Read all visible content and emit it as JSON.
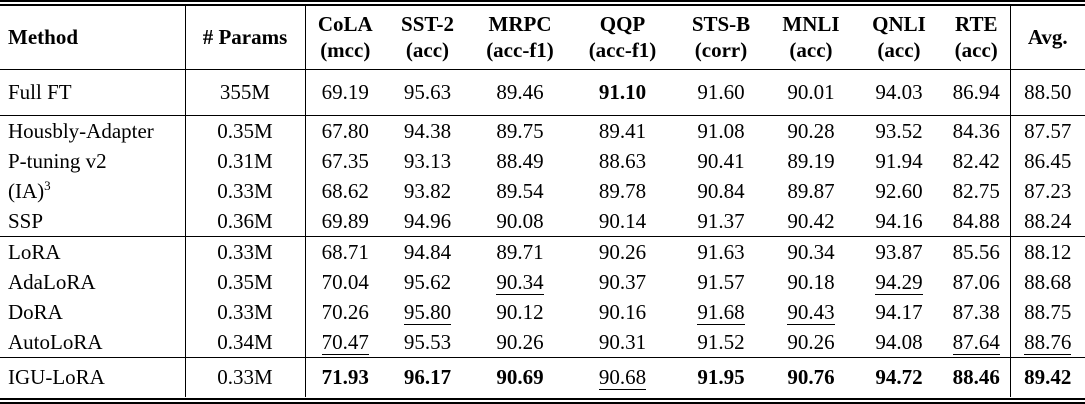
{
  "page": {
    "background_color": "#ffffff",
    "text_color": "#000000",
    "rule_color": "#000000"
  },
  "table": {
    "columns": [
      {
        "id": "method",
        "label": "Method",
        "sub": ""
      },
      {
        "id": "params",
        "label": "# Params",
        "sub": ""
      },
      {
        "id": "cola",
        "label": "CoLA",
        "sub": "(mcc)"
      },
      {
        "id": "sst2",
        "label": "SST-2",
        "sub": "(acc)"
      },
      {
        "id": "mrpc",
        "label": "MRPC",
        "sub": "(acc-f1)"
      },
      {
        "id": "qqp",
        "label": "QQP",
        "sub": "(acc-f1)"
      },
      {
        "id": "stsb",
        "label": "STS-B",
        "sub": "(corr)"
      },
      {
        "id": "mnli",
        "label": "MNLI",
        "sub": "(acc)"
      },
      {
        "id": "qnli",
        "label": "QNLI",
        "sub": "(acc)"
      },
      {
        "id": "rte",
        "label": "RTE",
        "sub": "(acc)"
      },
      {
        "id": "avg",
        "label": "Avg.",
        "sub": ""
      }
    ],
    "style_legend": {
      "bold": "best score",
      "underline": "second-best score"
    },
    "groups": [
      {
        "rows": [
          {
            "method": "Full FT",
            "params": "355M",
            "values": [
              "69.19",
              "95.63",
              "89.46",
              "91.10",
              "91.60",
              "90.01",
              "94.03",
              "86.94",
              "88.50"
            ],
            "styles": [
              "plain",
              "plain",
              "plain",
              "bold",
              "plain",
              "plain",
              "plain",
              "plain",
              "plain"
            ]
          }
        ]
      },
      {
        "rows": [
          {
            "method": "Housbly-Adapter",
            "params": "0.35M",
            "values": [
              "67.80",
              "94.38",
              "89.75",
              "89.41",
              "91.08",
              "90.28",
              "93.52",
              "84.36",
              "87.57"
            ],
            "styles": [
              "plain",
              "plain",
              "plain",
              "plain",
              "plain",
              "plain",
              "plain",
              "plain",
              "plain"
            ]
          },
          {
            "method": "P-tuning v2",
            "params": "0.31M",
            "values": [
              "67.35",
              "93.13",
              "88.49",
              "88.63",
              "90.41",
              "89.19",
              "91.94",
              "82.42",
              "86.45"
            ],
            "styles": [
              "plain",
              "plain",
              "plain",
              "plain",
              "plain",
              "plain",
              "plain",
              "plain",
              "plain"
            ]
          },
          {
            "method": "(IA)",
            "method_sup": "3",
            "params": "0.33M",
            "values": [
              "68.62",
              "93.82",
              "89.54",
              "89.78",
              "90.84",
              "89.87",
              "92.60",
              "82.75",
              "87.23"
            ],
            "styles": [
              "plain",
              "plain",
              "plain",
              "plain",
              "plain",
              "plain",
              "plain",
              "plain",
              "plain"
            ]
          },
          {
            "method": "SSP",
            "params": "0.36M",
            "values": [
              "69.89",
              "94.96",
              "90.08",
              "90.14",
              "91.37",
              "90.42",
              "94.16",
              "84.88",
              "88.24"
            ],
            "styles": [
              "plain",
              "plain",
              "plain",
              "plain",
              "plain",
              "plain",
              "plain",
              "plain",
              "plain"
            ]
          }
        ]
      },
      {
        "rows": [
          {
            "method": "LoRA",
            "params": "0.33M",
            "values": [
              "68.71",
              "94.84",
              "89.71",
              "90.26",
              "91.63",
              "90.34",
              "93.87",
              "85.56",
              "88.12"
            ],
            "styles": [
              "plain",
              "plain",
              "plain",
              "plain",
              "plain",
              "plain",
              "plain",
              "plain",
              "plain"
            ]
          },
          {
            "method": "AdaLoRA",
            "params": "0.35M",
            "values": [
              "70.04",
              "95.62",
              "90.34",
              "90.37",
              "91.57",
              "90.18",
              "94.29",
              "87.06",
              "88.68"
            ],
            "styles": [
              "plain",
              "plain",
              "underline",
              "plain",
              "plain",
              "plain",
              "underline",
              "plain",
              "plain"
            ]
          },
          {
            "method": "DoRA",
            "params": "0.33M",
            "values": [
              "70.26",
              "95.80",
              "90.12",
              "90.16",
              "91.68",
              "90.43",
              "94.17",
              "87.38",
              "88.75"
            ],
            "styles": [
              "plain",
              "underline",
              "plain",
              "plain",
              "underline",
              "underline",
              "plain",
              "plain",
              "plain"
            ]
          },
          {
            "method": "AutoLoRA",
            "params": "0.34M",
            "values": [
              "70.47",
              "95.53",
              "90.26",
              "90.31",
              "91.52",
              "90.26",
              "94.08",
              "87.64",
              "88.76"
            ],
            "styles": [
              "underline",
              "plain",
              "plain",
              "plain",
              "plain",
              "plain",
              "plain",
              "underline",
              "underline"
            ]
          }
        ]
      },
      {
        "rows": [
          {
            "method": "IGU-LoRA",
            "params": "0.33M",
            "values": [
              "71.93",
              "96.17",
              "90.69",
              "90.68",
              "91.95",
              "90.76",
              "94.72",
              "88.46",
              "89.42"
            ],
            "styles": [
              "bold",
              "bold",
              "bold",
              "underline",
              "bold",
              "bold",
              "bold",
              "bold",
              "bold"
            ]
          }
        ]
      }
    ]
  }
}
